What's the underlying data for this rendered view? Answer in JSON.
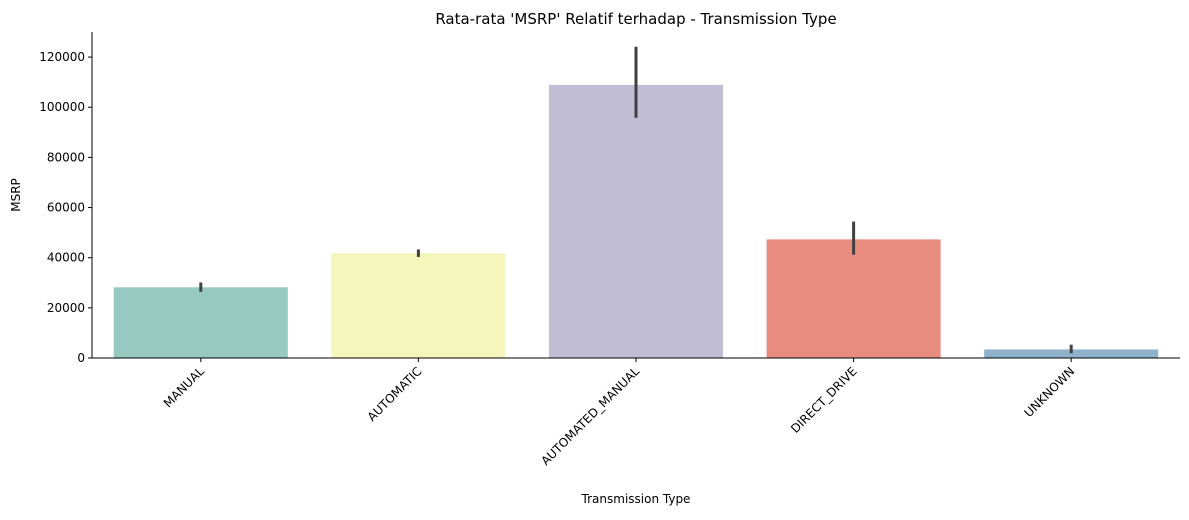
{
  "chart_data": {
    "type": "bar",
    "title": "Rata-rata 'MSRP' Relatif terhadap - Transmission Type",
    "xlabel": "Transmission Type",
    "ylabel": "MSRP",
    "categories": [
      "MANUAL",
      "AUTOMATIC",
      "AUTOMATED_MANUAL",
      "DIRECT_DRIVE",
      "UNKNOWN"
    ],
    "values": [
      28200,
      41800,
      108900,
      47300,
      3400
    ],
    "error_bars": [
      [
        26400,
        30100
      ],
      [
        40300,
        43300
      ],
      [
        95800,
        124100
      ],
      [
        41200,
        54400
      ],
      [
        1900,
        5300
      ]
    ],
    "colors": [
      "#96c9c0",
      "#f5f6bb",
      "#c1bdd5",
      "#e88c80",
      "#8eb2cc"
    ],
    "error_color": "#404040",
    "ylim": [
      0,
      130000
    ],
    "yticks": [
      0,
      20000,
      40000,
      60000,
      80000,
      100000,
      120000
    ],
    "ytick_labels": [
      "0",
      "20000",
      "40000",
      "60000",
      "80000",
      "100000",
      "120000"
    ],
    "grid": false,
    "legend": "none"
  }
}
